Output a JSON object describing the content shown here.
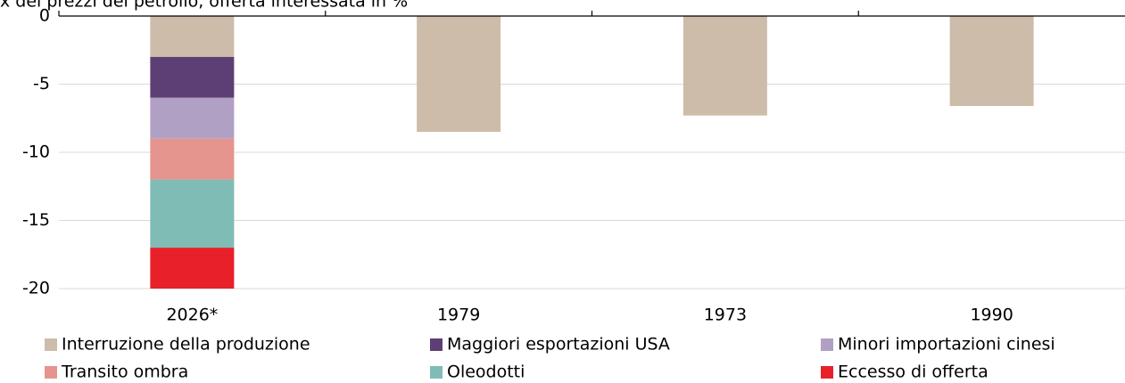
{
  "chart_data": {
    "type": "stacked_bar",
    "title": "x dei prezzi del petrolio, offerta interessata in %",
    "categories": [
      "2026*",
      "1979",
      "1973",
      "1990"
    ],
    "series": [
      {
        "name": "Interruzione della produzione",
        "color": "#cdbcaa",
        "values": [
          -3,
          -8.5,
          -7.3,
          -6.6
        ]
      },
      {
        "name": "Maggiori esportazioni USA",
        "color": "#5e3f75",
        "values": [
          -3,
          null,
          null,
          null
        ]
      },
      {
        "name": "Minori importazioni cinesi",
        "color": "#b0a0c4",
        "values": [
          -3,
          null,
          null,
          null
        ]
      },
      {
        "name": "Transito ombra",
        "color": "#e6948e",
        "values": [
          -3,
          null,
          null,
          null
        ]
      },
      {
        "name": "Oleodotti",
        "color": "#7fbcb5",
        "values": [
          -5,
          null,
          null,
          null
        ]
      },
      {
        "name": "Eccesso di offerta",
        "color": "#e8202a",
        "values": [
          -3,
          null,
          null,
          null
        ]
      }
    ],
    "ylim": [
      -20,
      0
    ],
    "yticks": [
      0,
      -5,
      -10,
      -15,
      -20
    ],
    "grid": true
  }
}
